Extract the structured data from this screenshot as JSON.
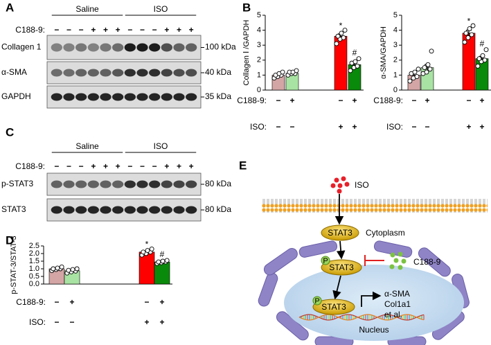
{
  "panels": [
    "A",
    "B",
    "C",
    "D",
    "E"
  ],
  "blots": [
    {
      "groups": [
        "Saline",
        "ISO"
      ],
      "treatment_label": "C188-9:",
      "signs": [
        "−",
        "−",
        "−",
        "+",
        "+",
        "+",
        "−",
        "−",
        "−",
        "+",
        "+",
        "+"
      ],
      "rows": [
        {
          "name": "Collagen 1",
          "size": "100 kDa"
        },
        {
          "name": "α-SMA",
          "size": "40 kDa"
        },
        {
          "name": "GAPDH",
          "size": "35 kDa"
        }
      ]
    },
    {
      "groups": [
        "Saline",
        "ISO"
      ],
      "treatment_label": "C188-9:",
      "signs": [
        "−",
        "−",
        "−",
        "+",
        "+",
        "+",
        "−",
        "−",
        "−",
        "+",
        "+",
        "+"
      ],
      "rows": [
        {
          "name": "p-STAT3",
          "size": "80 kDa"
        },
        {
          "name": "STAT3",
          "size": "80 kDa"
        }
      ]
    }
  ],
  "chart_data": [
    {
      "type": "bar",
      "ylabel": "Collagen Ⅰ /GAPDH",
      "values": [
        1.0,
        1.12,
        3.6,
        1.7
      ],
      "errors": [
        0.1,
        0.08,
        0.15,
        0.15
      ],
      "points": [
        [
          0.8,
          0.9,
          1.0,
          1.0,
          1.1,
          1.2
        ],
        [
          1.0,
          1.1,
          1.1,
          1.2,
          1.2,
          1.3
        ],
        [
          3.1,
          3.4,
          3.5,
          3.6,
          3.8,
          4.0
        ],
        [
          1.3,
          1.5,
          1.6,
          1.8,
          1.9,
          2.1
        ]
      ],
      "colors": [
        "#d4a5a5",
        "#a9e3a3",
        "#ff0000",
        "#0a8a0a"
      ],
      "bar_marks": [
        null,
        null,
        "*",
        "#"
      ],
      "conditions": [
        {
          "label": "C188-9:",
          "signs": [
            "−",
            "+",
            "−",
            "+"
          ]
        },
        {
          "label": "ISO:",
          "signs": [
            "−",
            "−",
            "+",
            "+"
          ]
        }
      ],
      "ylim": [
        0,
        5
      ],
      "yticks": [
        0,
        1,
        2,
        3,
        4,
        5
      ]
    },
    {
      "type": "bar",
      "ylabel": "α-SMA/GAPDH",
      "values": [
        1.0,
        1.5,
        3.8,
        2.1
      ],
      "errors": [
        0.15,
        0.2,
        0.2,
        0.15
      ],
      "points": [
        [
          0.6,
          0.8,
          0.9,
          1.1,
          1.2,
          1.4
        ],
        [
          1.1,
          1.2,
          1.4,
          1.5,
          1.7,
          2.6
        ],
        [
          3.2,
          3.5,
          3.7,
          3.8,
          4.1,
          4.3
        ],
        [
          1.6,
          1.9,
          2.0,
          2.1,
          2.3,
          2.7
        ]
      ],
      "colors": [
        "#d4a5a5",
        "#a9e3a3",
        "#ff0000",
        "#0a8a0a"
      ],
      "bar_marks": [
        null,
        null,
        "*",
        "#"
      ],
      "conditions": [
        {
          "label": "C188-9:",
          "signs": [
            "−",
            "+",
            "−",
            "+"
          ]
        },
        {
          "label": "ISO:",
          "signs": [
            "−",
            "−",
            "+",
            "+"
          ]
        }
      ],
      "ylim": [
        0,
        5
      ],
      "yticks": [
        0,
        1,
        2,
        3,
        4,
        5
      ]
    },
    {
      "type": "bar",
      "ylabel": "p-STAT-3/STAT-3",
      "values": [
        1.0,
        0.87,
        2.1,
        1.45
      ],
      "errors": [
        0.05,
        0.05,
        0.07,
        0.04
      ],
      "points": [
        [
          0.88,
          0.95,
          1.0,
          1.0,
          1.05,
          1.12
        ],
        [
          0.72,
          0.8,
          0.85,
          0.9,
          0.95,
          1.0
        ],
        [
          1.9,
          2.0,
          2.1,
          2.1,
          2.2,
          2.3
        ],
        [
          1.35,
          1.4,
          1.45,
          1.45,
          1.5,
          1.55
        ]
      ],
      "colors": [
        "#d4a5a5",
        "#a9e3a3",
        "#ff0000",
        "#0a8a0a"
      ],
      "bar_marks": [
        null,
        null,
        "*",
        "#"
      ],
      "conditions": [
        {
          "label": "C188-9:",
          "signs": [
            "−",
            "+",
            "−",
            "+"
          ]
        },
        {
          "label": "ISO:",
          "signs": [
            "−",
            "−",
            "+",
            "+"
          ]
        }
      ],
      "ylim": [
        0,
        2.5
      ],
      "yticks": [
        {
          "value": 0,
          "label": "0.0"
        },
        0.5,
        {
          "value": 1,
          "label": "1.0"
        },
        1.5,
        {
          "value": 2,
          "label": "2.0"
        },
        2.5
      ]
    }
  ],
  "diagram": {
    "ligand": "ISO",
    "stat3": [
      "STAT3",
      "STAT3",
      "STAT3"
    ],
    "phospho": [
      "P",
      "P"
    ],
    "compartment": "Cytoplasm",
    "inhibitor": "C188-9",
    "targets": [
      "α-SMA",
      "Col1a1",
      "et al."
    ],
    "nucleus": "Nucleus"
  }
}
